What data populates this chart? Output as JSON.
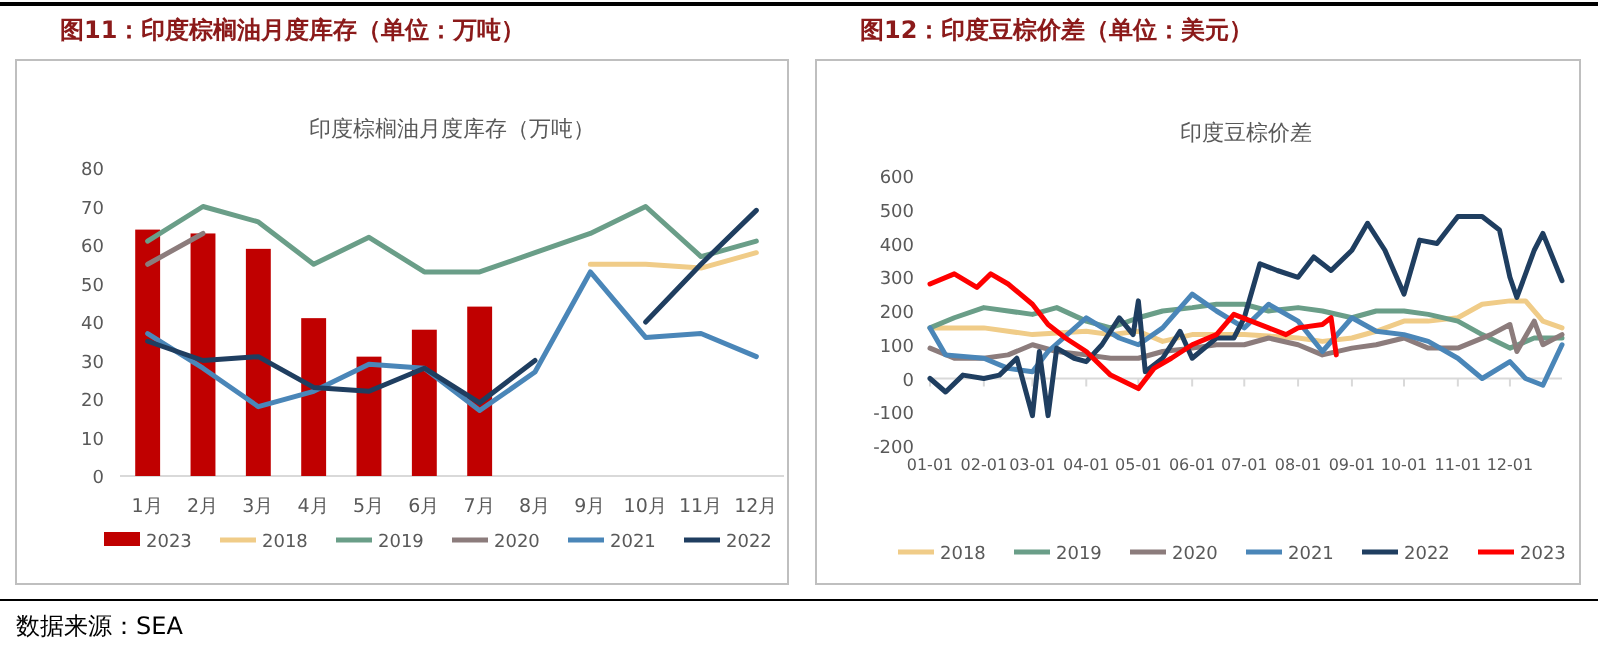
{
  "chart_data": [
    {
      "type": "line",
      "title": "图11：印度棕榈油月度库存（单位：万吨）",
      "subtitle": "印度棕榈油月度库存（万吨）",
      "categories": [
        "1月",
        "2月",
        "3月",
        "4月",
        "5月",
        "6月",
        "7月",
        "8月",
        "9月",
        "10月",
        "11月",
        "12月"
      ],
      "ylim": [
        0,
        80
      ],
      "yticks": [
        0,
        10,
        20,
        30,
        40,
        50,
        60,
        70,
        80
      ],
      "legend": "bottom",
      "annotations": [
        "数据来源：SEA"
      ],
      "series": [
        {
          "name": "2023",
          "type": "bar",
          "color": "#c00000",
          "values": [
            64,
            63,
            59,
            41,
            31,
            38,
            44,
            null,
            null,
            null,
            null,
            null
          ]
        },
        {
          "name": "2018",
          "color": "#f0cc88",
          "values": [
            null,
            null,
            null,
            null,
            null,
            null,
            null,
            null,
            55,
            55,
            54,
            58
          ]
        },
        {
          "name": "2019",
          "color": "#6a9e88",
          "values": [
            61,
            70,
            66,
            55,
            62,
            53,
            53,
            58,
            63,
            70,
            57,
            61
          ]
        },
        {
          "name": "2020",
          "color": "#8c7c7c",
          "values": [
            55,
            63,
            null,
            null,
            null,
            null,
            null,
            null,
            null,
            null,
            null,
            null
          ]
        },
        {
          "name": "2021",
          "color": "#4a86b8",
          "values": [
            37,
            28,
            18,
            22,
            29,
            28,
            17,
            27,
            53,
            36,
            37,
            31
          ]
        },
        {
          "name": "2022",
          "color": "#1f3e60",
          "values": [
            35,
            30,
            31,
            23,
            22,
            28,
            19,
            30,
            null,
            40,
            55,
            69
          ]
        }
      ]
    },
    {
      "type": "line",
      "title": "图12：印度豆棕价差（单位：美元）",
      "subtitle": "印度豆棕价差",
      "xlim": [
        "--01-01",
        "--12-31"
      ],
      "xticks": [
        {
          "value": "--01-01",
          "label": "01-01"
        },
        {
          "value": "--02-01",
          "label": "02-01"
        },
        {
          "value": "--03-01",
          "label": "03-01"
        },
        {
          "value": "--04-01",
          "label": "04-01"
        },
        {
          "value": "--05-01",
          "label": "05-01"
        },
        {
          "value": "--06-01",
          "label": "06-01"
        },
        {
          "value": "--07-01",
          "label": "07-01"
        },
        {
          "value": "--08-01",
          "label": "08-01"
        },
        {
          "value": "--09-01",
          "label": "09-01"
        },
        {
          "value": "--10-01",
          "label": "10-01"
        },
        {
          "value": "--11-01",
          "label": "11-01"
        },
        {
          "value": "--12-01",
          "label": "12-01"
        }
      ],
      "ylim": [
        -200,
        600
      ],
      "yticks": [
        -200,
        -100,
        0,
        100,
        200,
        300,
        400,
        500,
        600
      ],
      "legend": "bottom",
      "series": [
        {
          "name": "2018",
          "color": "#f0cc88",
          "x": [
            "--01-01",
            "--02-01",
            "--03-01",
            "--04-01",
            "--04-15",
            "--05-01",
            "--05-15",
            "--06-01",
            "--06-15",
            "--07-01",
            "--08-01",
            "--08-15",
            "--09-01",
            "--09-15",
            "--10-01",
            "--10-15",
            "--11-01",
            "--11-15",
            "--12-01",
            "--12-10",
            "--12-20",
            "--12-31"
          ],
          "values": [
            150,
            150,
            130,
            140,
            130,
            140,
            110,
            130,
            130,
            130,
            120,
            110,
            120,
            140,
            170,
            170,
            180,
            220,
            230,
            230,
            170,
            150
          ]
        },
        {
          "name": "2019",
          "color": "#6a9e88",
          "x": [
            "--01-01",
            "--01-15",
            "--02-01",
            "--02-15",
            "--03-01",
            "--03-15",
            "--04-01",
            "--04-15",
            "--05-01",
            "--05-15",
            "--06-01",
            "--06-15",
            "--07-01",
            "--07-15",
            "--08-01",
            "--08-15",
            "--09-01",
            "--09-15",
            "--10-01",
            "--10-15",
            "--11-01",
            "--11-15",
            "--12-01",
            "--12-15",
            "--12-31"
          ],
          "values": [
            150,
            180,
            210,
            200,
            190,
            210,
            170,
            150,
            180,
            200,
            210,
            220,
            220,
            200,
            210,
            200,
            180,
            200,
            200,
            190,
            170,
            130,
            90,
            120,
            120
          ]
        },
        {
          "name": "2020",
          "color": "#8c7c7c",
          "x": [
            "--01-01",
            "--01-15",
            "--02-01",
            "--02-15",
            "--03-01",
            "--03-15",
            "--04-01",
            "--04-15",
            "--05-01",
            "--05-15",
            "--06-01",
            "--06-15",
            "--07-01",
            "--07-15",
            "--08-01",
            "--08-15",
            "--09-01",
            "--09-15",
            "--10-01",
            "--10-15",
            "--11-01",
            "--11-20",
            "--12-01",
            "--12-05",
            "--12-15",
            "--12-20",
            "--12-31"
          ],
          "values": [
            90,
            60,
            60,
            70,
            100,
            80,
            70,
            60,
            60,
            80,
            90,
            100,
            100,
            120,
            100,
            70,
            90,
            100,
            120,
            90,
            90,
            130,
            160,
            80,
            170,
            100,
            130
          ]
        },
        {
          "name": "2021",
          "color": "#4a86b8",
          "x": [
            "--01-01",
            "--01-10",
            "--02-01",
            "--02-15",
            "--03-01",
            "--03-10",
            "--04-01",
            "--04-20",
            "--05-01",
            "--05-15",
            "--06-01",
            "--06-15",
            "--07-01",
            "--07-15",
            "--08-01",
            "--08-15",
            "--09-01",
            "--09-15",
            "--10-01",
            "--10-15",
            "--11-01",
            "--11-15",
            "--12-01",
            "--12-10",
            "--12-20",
            "--12-31"
          ],
          "values": [
            150,
            70,
            60,
            30,
            20,
            80,
            180,
            120,
            100,
            150,
            250,
            200,
            150,
            220,
            170,
            80,
            180,
            140,
            130,
            110,
            60,
            0,
            50,
            0,
            -20,
            100
          ]
        },
        {
          "name": "2022",
          "color": "#1f3e60",
          "x": [
            "--01-01",
            "--01-10",
            "--01-20",
            "--02-01",
            "--02-10",
            "--02-20",
            "--03-01",
            "--03-05",
            "--03-10",
            "--03-15",
            "--03-25",
            "--04-01",
            "--04-10",
            "--04-20",
            "--04-28",
            "--05-01",
            "--05-05",
            "--05-15",
            "--05-25",
            "--06-01",
            "--06-15",
            "--06-25",
            "--07-01",
            "--07-10",
            "--07-20",
            "--08-01",
            "--08-10",
            "--08-20",
            "--09-01",
            "--09-10",
            "--09-20",
            "--10-01",
            "--10-10",
            "--10-20",
            "--11-01",
            "--11-15",
            "--11-25",
            "--12-01",
            "--12-05",
            "--12-15",
            "--12-20",
            "--12-31"
          ],
          "values": [
            0,
            -40,
            10,
            0,
            10,
            60,
            -110,
            80,
            -110,
            90,
            60,
            50,
            100,
            180,
            130,
            230,
            20,
            60,
            140,
            60,
            120,
            120,
            180,
            340,
            320,
            300,
            360,
            320,
            380,
            460,
            380,
            250,
            410,
            400,
            480,
            480,
            440,
            300,
            240,
            380,
            430,
            290
          ]
        },
        {
          "name": "2023",
          "color": "#ff0000",
          "x": [
            "--01-01",
            "--01-15",
            "--01-28",
            "--02-05",
            "--02-15",
            "--03-01",
            "--03-10",
            "--03-20",
            "--04-01",
            "--04-15",
            "--05-01",
            "--05-10",
            "--05-20",
            "--06-01",
            "--06-15",
            "--06-25",
            "--07-05",
            "--07-15",
            "--07-25",
            "--08-01",
            "--08-15",
            "--08-20",
            "--08-23"
          ],
          "values": [
            280,
            310,
            270,
            310,
            280,
            220,
            160,
            120,
            80,
            10,
            -30,
            30,
            60,
            100,
            130,
            190,
            170,
            150,
            130,
            150,
            160,
            180,
            70
          ]
        }
      ]
    }
  ]
}
